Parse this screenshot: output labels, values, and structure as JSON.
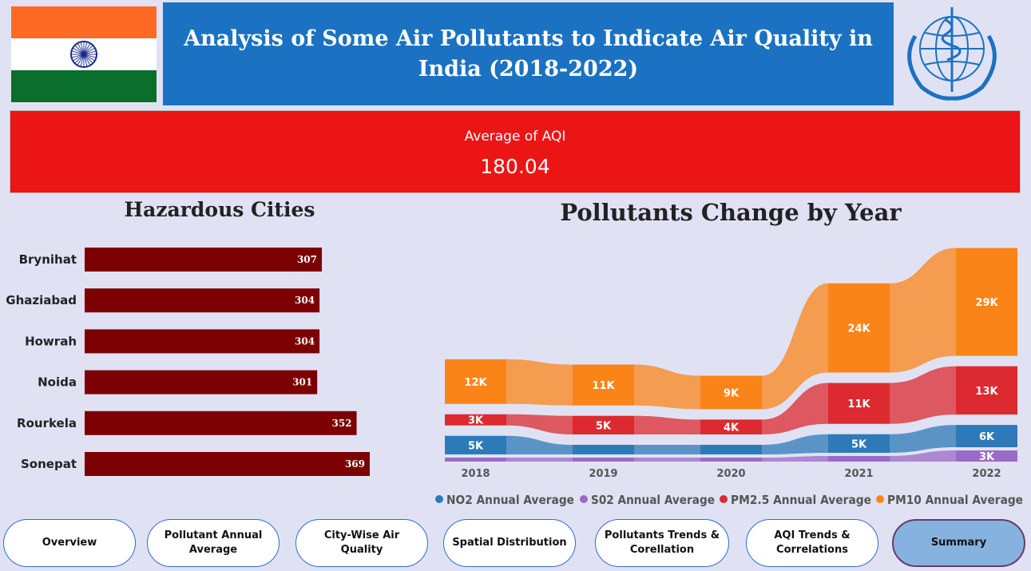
{
  "header": {
    "title": "Analysis of Some Air Pollutants to Indicate Air Quality in India (2018-2022)"
  },
  "kpi": {
    "label": "Average of AQI",
    "value": "180.04"
  },
  "hazardous": {
    "title": "Hazardous Cities"
  },
  "pollutants": {
    "title": "Pollutants Change by Year"
  },
  "colors": {
    "no2": "#2e7ab8",
    "so2": "#9b6ac8",
    "pm25": "#dc2a30",
    "pm10": "#fb8418",
    "bar": "#7d0102"
  },
  "chart_data": [
    {
      "type": "bar",
      "orientation": "horizontal",
      "title": "Hazardous Cities",
      "categories": [
        "Brynihat",
        "Ghaziabad",
        "Howrah",
        "Noida",
        "Rourkela",
        "Sonepat"
      ],
      "values": [
        307,
        304,
        304,
        301,
        352,
        369
      ],
      "xlim": [
        0,
        400
      ]
    },
    {
      "type": "area",
      "subtype": "ribbon",
      "title": "Pollutants Change by Year",
      "categories": [
        "2018",
        "2019",
        "2020",
        "2021",
        "2022"
      ],
      "series": [
        {
          "name": "NO2 Annual Average",
          "values": [
            5000,
            1500,
            1200,
            5000,
            6000
          ],
          "labels": [
            "5K",
            "",
            "",
            "5K",
            "6K"
          ]
        },
        {
          "name": "S02 Annual Average",
          "values": [
            700,
            600,
            600,
            1500,
            3000
          ],
          "labels": [
            "",
            "",
            "",
            "",
            "3K"
          ]
        },
        {
          "name": "PM2.5 Annual Average",
          "values": [
            3000,
            5000,
            4000,
            11000,
            13000
          ],
          "labels": [
            "3K",
            "5K",
            "4K",
            "11K",
            "13K"
          ]
        },
        {
          "name": "PM10 Annual Average",
          "values": [
            12000,
            11000,
            9000,
            24000,
            29000
          ],
          "labels": [
            "12K",
            "11K",
            "9K",
            "24K",
            "29K"
          ]
        }
      ]
    }
  ],
  "nav": [
    {
      "label": "Overview"
    },
    {
      "label": "Pollutant Annual Average"
    },
    {
      "label": "City-Wise Air Quality"
    },
    {
      "label": "Spatial Distribution"
    },
    {
      "label": "Pollutants Trends & Corellation"
    },
    {
      "label": "AQI Trends & Correlations"
    },
    {
      "label": "Summary"
    }
  ]
}
